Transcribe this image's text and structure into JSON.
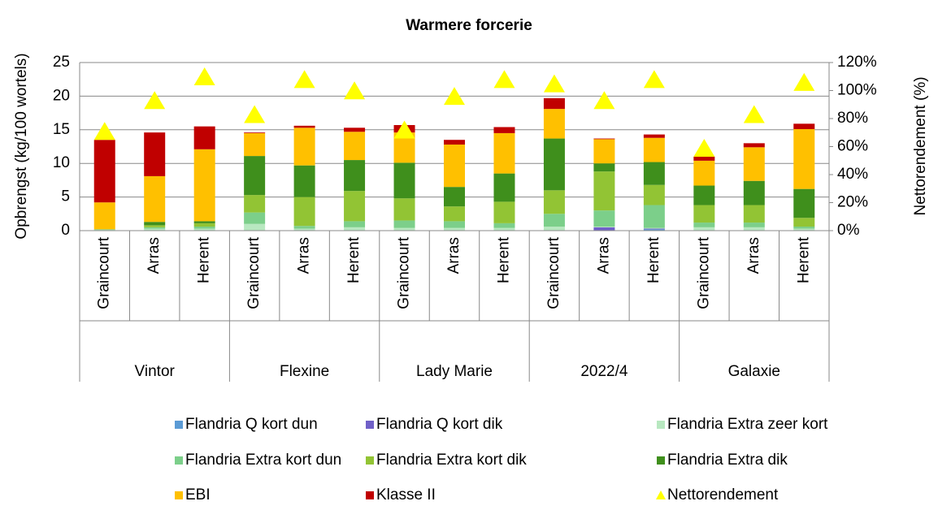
{
  "chart_data": {
    "type": "stacked-bar",
    "title": "Warmere forcerie",
    "y_label": "Opbrengst (kg/100 wortels)",
    "y2_label": "Nettorendement (%)",
    "categories": [
      "Graincourt",
      "Arras",
      "Herent",
      "Graincourt",
      "Arras",
      "Herent",
      "Graincourt",
      "Arras",
      "Herent",
      "Graincourt",
      "Arras",
      "Herent",
      "Graincourt",
      "Arras",
      "Herent"
    ],
    "groups": [
      "Vintor",
      "Flexine",
      "Lady Marie",
      "2022/4",
      "Galaxie"
    ],
    "ylim": [
      0,
      25
    ],
    "yticks": [
      0,
      5,
      10,
      15,
      20,
      25
    ],
    "y2lim": [
      0,
      120
    ],
    "y2ticks": [
      {
        "value": 0,
        "label": "0%"
      },
      {
        "value": 20,
        "label": "20%"
      },
      {
        "value": 40,
        "label": "40%"
      },
      {
        "value": 60,
        "label": "60%"
      },
      {
        "value": 80,
        "label": "80%"
      },
      {
        "value": 100,
        "label": "100%"
      },
      {
        "value": 120,
        "label": "120%"
      }
    ],
    "grid": true,
    "legend": "bottom",
    "series": [
      {
        "name": "Flandria Q kort dun",
        "color": "#5b9bd5",
        "values": [
          0,
          0,
          0,
          0,
          0,
          0,
          0,
          0,
          0,
          0,
          0,
          0.2,
          0,
          0,
          0
        ]
      },
      {
        "name": "Flandria Q kort dik",
        "color": "#7060c8",
        "values": [
          0,
          0,
          0,
          0,
          0,
          0,
          0,
          0,
          0,
          0,
          0.5,
          0.1,
          0,
          0,
          0
        ]
      },
      {
        "name": "Flandria Extra zeer kort",
        "color": "#b8e8c0",
        "values": [
          0.1,
          0.3,
          0.3,
          1.0,
          0.3,
          0.5,
          0.4,
          0.4,
          0.4,
          0.6,
          0.1,
          0.1,
          0.5,
          0.5,
          0.3
        ]
      },
      {
        "name": "Flandria Extra kort dun",
        "color": "#7ccf8a",
        "values": [
          0.1,
          0.2,
          0.3,
          1.7,
          0.4,
          0.9,
          1.1,
          1.0,
          0.7,
          1.9,
          2.4,
          3.4,
          0.7,
          0.7,
          0.3
        ]
      },
      {
        "name": "Flandria Extra kort dik",
        "color": "#92c434",
        "values": [
          0,
          0.3,
          0.5,
          2.6,
          4.3,
          4.5,
          3.3,
          2.2,
          3.2,
          3.5,
          5.8,
          3.0,
          2.6,
          2.6,
          1.3
        ]
      },
      {
        "name": "Flandria Extra dik",
        "color": "#3f8f1c",
        "values": [
          0,
          0.5,
          0.3,
          5.8,
          4.7,
          4.6,
          5.3,
          2.9,
          4.2,
          7.7,
          1.2,
          3.4,
          2.9,
          3.6,
          4.3
        ]
      },
      {
        "name": "EBI",
        "color": "#ffc000",
        "values": [
          4.0,
          6.8,
          10.7,
          3.4,
          5.6,
          4.2,
          4.5,
          6.3,
          6.0,
          4.4,
          3.6,
          3.6,
          3.7,
          5.0,
          8.9
        ]
      },
      {
        "name": "Klasse II",
        "color": "#c00000",
        "values": [
          9.3,
          6.5,
          3.4,
          0.1,
          0.3,
          0.6,
          1.1,
          0.7,
          0.9,
          1.6,
          0.1,
          0.5,
          0.6,
          0.6,
          0.8
        ]
      },
      {
        "name": "Nettorendement",
        "color": "#ffff00",
        "axis": "y2",
        "values": [
          70,
          92,
          109,
          82,
          107,
          99,
          71,
          95,
          107,
          104,
          92,
          107,
          58,
          82,
          105
        ]
      }
    ]
  }
}
